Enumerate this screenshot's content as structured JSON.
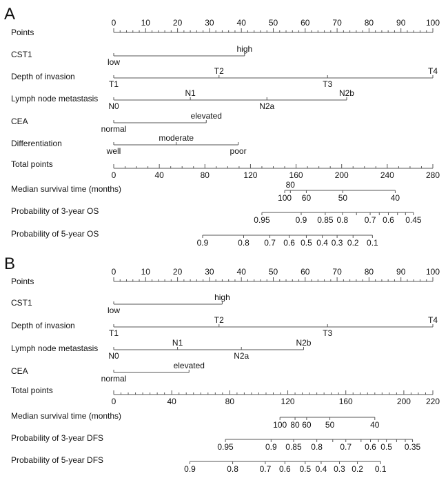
{
  "chart_data": [
    {
      "type": "nomogram",
      "panel_label": "A",
      "points_axis": {
        "label": "Points",
        "range": [
          0,
          100
        ],
        "major": 10,
        "minor": 2
      },
      "variables": [
        {
          "name": "CST1",
          "levels": [
            {
              "label": "low",
              "points": 0,
              "side": "below"
            },
            {
              "label": "high",
              "points": 41,
              "side": "above"
            }
          ]
        },
        {
          "name": "Depth of invasion",
          "levels": [
            {
              "label": "T1",
              "points": 0,
              "side": "below"
            },
            {
              "label": "T2",
              "points": 33,
              "side": "above"
            },
            {
              "label": "T3",
              "points": 67,
              "side": "below"
            },
            {
              "label": "T4",
              "points": 100,
              "side": "above"
            }
          ]
        },
        {
          "name": "Lymph node metastasis",
          "levels": [
            {
              "label": "N0",
              "points": 0,
              "side": "below"
            },
            {
              "label": "N1",
              "points": 24,
              "side": "above"
            },
            {
              "label": "N2a",
              "points": 48,
              "side": "below"
            },
            {
              "label": "N2b",
              "points": 73,
              "side": "above"
            }
          ]
        },
        {
          "name": "CEA",
          "levels": [
            {
              "label": "normal",
              "points": 0,
              "side": "below"
            },
            {
              "label": "elevated",
              "points": 29,
              "side": "above"
            }
          ]
        },
        {
          "name": "Differentiation",
          "levels": [
            {
              "label": "well",
              "points": 0,
              "side": "below"
            },
            {
              "label": "moderate",
              "points": 19.6,
              "side": "above"
            },
            {
              "label": "poor",
              "points": 39,
              "side": "below"
            }
          ]
        }
      ],
      "total_axis": {
        "label": "Total points",
        "range": [
          0,
          280
        ],
        "major": 40,
        "minor": 10
      },
      "outcomes": [
        {
          "name": "Median survival time (months)",
          "ticks": [
            {
              "label": "100",
              "total": 150,
              "side": "below"
            },
            {
              "label": "80",
              "total": 155,
              "side": "above"
            },
            {
              "label": "60",
              "total": 169,
              "side": "below"
            },
            {
              "label": "50",
              "total": 201,
              "side": "below"
            },
            {
              "label": "40",
              "total": 247,
              "side": "below"
            }
          ]
        },
        {
          "name": "Probability of 3-year OS",
          "ticks": [
            {
              "label": "0.95",
              "total": 130
            },
            {
              "label": "0.9",
              "total": 164.5
            },
            {
              "label": "0.85",
              "total": 185.6
            },
            {
              "label": "0.8",
              "total": 200.7
            },
            {
              "label": "",
              "total": 213
            },
            {
              "label": "0.7",
              "total": 225
            },
            {
              "label": "",
              "total": 233
            },
            {
              "label": "0.6",
              "total": 241
            },
            {
              "label": "",
              "total": 249
            },
            {
              "label": "",
              "total": 256
            },
            {
              "label": "0.45",
              "total": 263
            }
          ]
        },
        {
          "name": "Probability of 5-year OS",
          "ticks": [
            {
              "label": "0.9",
              "total": 78
            },
            {
              "label": "0.8",
              "total": 114
            },
            {
              "label": "0.7",
              "total": 137
            },
            {
              "label": "0.6",
              "total": 154
            },
            {
              "label": "0.5",
              "total": 169
            },
            {
              "label": "0.4",
              "total": 183
            },
            {
              "label": "0.3",
              "total": 196
            },
            {
              "label": "0.2",
              "total": 210
            },
            {
              "label": "0.1",
              "total": 227
            }
          ]
        }
      ]
    },
    {
      "type": "nomogram",
      "panel_label": "B",
      "points_axis": {
        "label": "Points",
        "range": [
          0,
          100
        ],
        "major": 10,
        "minor": 2
      },
      "variables": [
        {
          "name": "CST1",
          "levels": [
            {
              "label": "low",
              "points": 0,
              "side": "below"
            },
            {
              "label": "high",
              "points": 34,
              "side": "above"
            }
          ]
        },
        {
          "name": "Depth of invasion",
          "levels": [
            {
              "label": "T1",
              "points": 0,
              "side": "below"
            },
            {
              "label": "T2",
              "points": 33,
              "side": "above"
            },
            {
              "label": "T3",
              "points": 67,
              "side": "below"
            },
            {
              "label": "T4",
              "points": 100,
              "side": "above"
            }
          ]
        },
        {
          "name": "Lymph node metastasis",
          "levels": [
            {
              "label": "N0",
              "points": 0,
              "side": "below"
            },
            {
              "label": "N1",
              "points": 20,
              "side": "above"
            },
            {
              "label": "N2a",
              "points": 40,
              "side": "below"
            },
            {
              "label": "N2b",
              "points": 59.5,
              "side": "above"
            }
          ]
        },
        {
          "name": "CEA",
          "levels": [
            {
              "label": "normal",
              "points": 0,
              "side": "below"
            },
            {
              "label": "elevated",
              "points": 23.6,
              "side": "above"
            }
          ]
        }
      ],
      "total_axis": {
        "label": "Total points",
        "range": [
          0,
          220
        ],
        "major": 40,
        "minor": 5,
        "extra_labels": [
          220
        ]
      },
      "outcomes": [
        {
          "name": "Median survival time (months)",
          "ticks": [
            {
              "label": "100",
              "total": 114.6
            },
            {
              "label": "80",
              "total": 125
            },
            {
              "label": "60",
              "total": 133
            },
            {
              "label": "50",
              "total": 149
            },
            {
              "label": "40",
              "total": 180
            }
          ]
        },
        {
          "name": "Probability of 3-year DFS",
          "ticks": [
            {
              "label": "0.95",
              "total": 77
            },
            {
              "label": "0.9",
              "total": 108.5
            },
            {
              "label": "0.85",
              "total": 124
            },
            {
              "label": "0.8",
              "total": 140
            },
            {
              "label": "",
              "total": 151
            },
            {
              "label": "0.7",
              "total": 160
            },
            {
              "label": "",
              "total": 170.5
            },
            {
              "label": "0.6",
              "total": 177
            },
            {
              "label": "",
              "total": 182.5
            },
            {
              "label": "0.5",
              "total": 188
            },
            {
              "label": "",
              "total": 195
            },
            {
              "label": "",
              "total": 201
            },
            {
              "label": "0.35",
              "total": 206
            }
          ]
        },
        {
          "name": "Probability of 5-year DFS",
          "ticks": [
            {
              "label": "0.9",
              "total": 52.5
            },
            {
              "label": "0.8",
              "total": 82
            },
            {
              "label": "0.7",
              "total": 104.5
            },
            {
              "label": "0.6",
              "total": 118
            },
            {
              "label": "0.5",
              "total": 132
            },
            {
              "label": "0.4",
              "total": 143
            },
            {
              "label": "0.3",
              "total": 155.6
            },
            {
              "label": "0.2",
              "total": 168
            },
            {
              "label": "0.1",
              "total": 184
            }
          ]
        }
      ]
    }
  ]
}
